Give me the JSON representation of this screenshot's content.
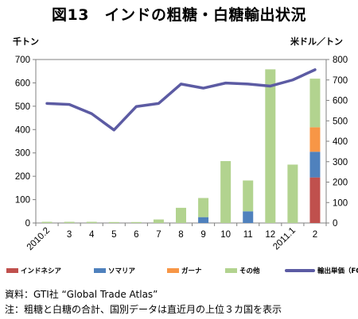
{
  "title": "図13　インドの粗糖・白糖輸出状況",
  "left_unit": "千トン",
  "right_unit": "米ドル／トン",
  "source": "資料：GTI社 “Global Trade Atlas”",
  "note": "注：粗糖と白糖の合計、国別データは直近月の上位３カ国を表示",
  "chart_data": {
    "type": "bar",
    "categories": [
      "2010.2",
      "3",
      "4",
      "5",
      "6",
      "7",
      "8",
      "9",
      "10",
      "11",
      "12",
      "2011.1",
      "2"
    ],
    "y_left": {
      "min": 0,
      "max": 700,
      "ticks": [
        0,
        100,
        200,
        300,
        400,
        500,
        600,
        700
      ]
    },
    "y_right": {
      "min": 0,
      "max": 800,
      "ticks": [
        0,
        100,
        200,
        300,
        400,
        500,
        600,
        700,
        800
      ]
    },
    "series": [
      {
        "name": "インドネシア",
        "kind": "stacked-bar",
        "axis": "left",
        "color": "#c0504d",
        "values": [
          0,
          0,
          0,
          0,
          0,
          0,
          0,
          0,
          0,
          0,
          0,
          0,
          195
        ]
      },
      {
        "name": "ソマリア",
        "kind": "stacked-bar",
        "axis": "left",
        "color": "#4f81bd",
        "values": [
          0,
          0,
          0,
          0,
          0,
          0,
          0,
          25,
          0,
          50,
          0,
          0,
          110
        ]
      },
      {
        "name": "ガーナ",
        "kind": "stacked-bar",
        "axis": "left",
        "color": "#f79646",
        "values": [
          0,
          0,
          0,
          0,
          0,
          0,
          0,
          0,
          0,
          0,
          0,
          0,
          105
        ]
      },
      {
        "name": "その他",
        "kind": "stacked-bar",
        "axis": "left",
        "color": "#b2d38f",
        "values": [
          5,
          5,
          5,
          4,
          4,
          15,
          65,
          82,
          265,
          132,
          658,
          250,
          208
        ]
      },
      {
        "name": "輸出単価（FOB）",
        "kind": "line",
        "axis": "right",
        "color": "#5c5ba3",
        "values": [
          585,
          580,
          535,
          455,
          570,
          585,
          680,
          660,
          685,
          680,
          670,
          700,
          750
        ]
      }
    ]
  }
}
